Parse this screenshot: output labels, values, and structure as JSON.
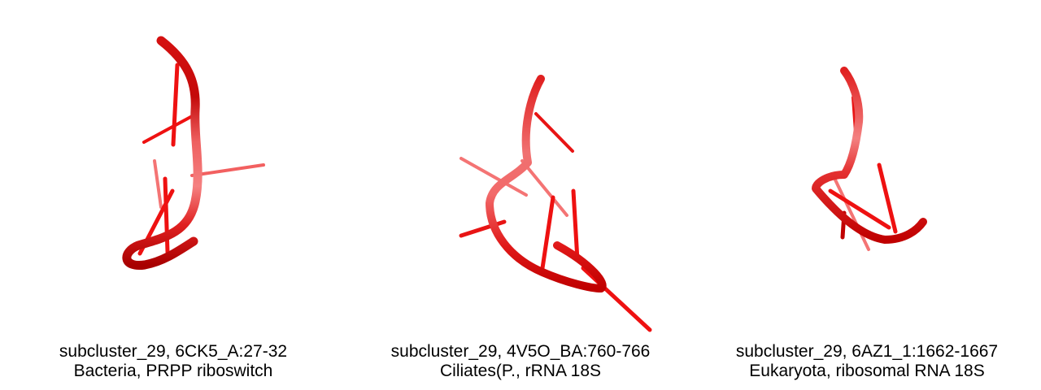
{
  "colors": {
    "backbone_light": "#f07878",
    "backbone_mid": "#e02020",
    "backbone_dark": "#b80000",
    "stick": "#ee1111",
    "stick_faded": "#f47474",
    "text": "#000000",
    "background": "#ffffff"
  },
  "panels": [
    {
      "title": "subcluster_29, 6CK5_A:27-32",
      "subtitle": "Bacteria, PRPP riboswitch",
      "structure_icon": "rna-backbone-cartoon"
    },
    {
      "title": "subcluster_29, 4V5O_BA:760-766",
      "subtitle": "Ciliates(P., rRNA 18S",
      "structure_icon": "rna-backbone-cartoon"
    },
    {
      "title": "subcluster_29, 6AZ1_1:1662-1667",
      "subtitle": "Eukaryota, ribosomal RNA 18S",
      "structure_icon": "rna-backbone-cartoon"
    }
  ]
}
